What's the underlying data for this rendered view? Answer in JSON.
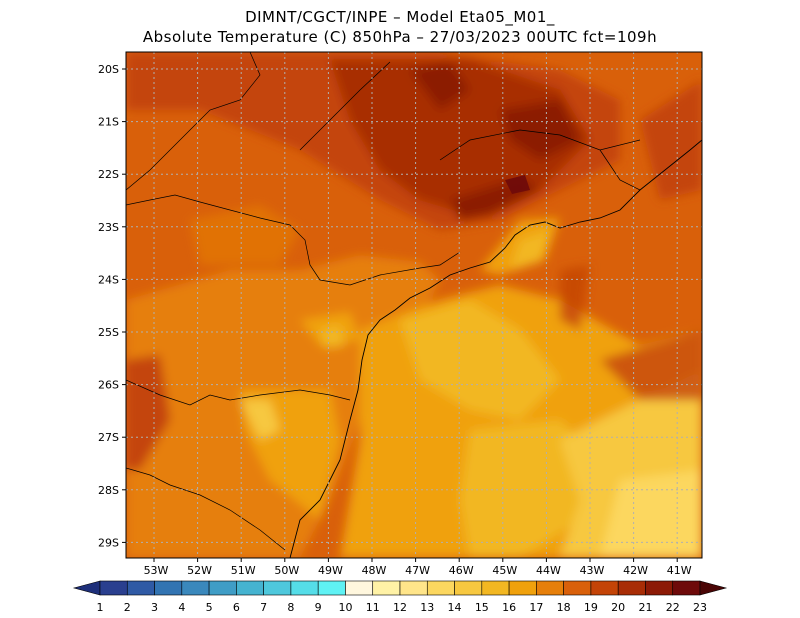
{
  "title_line1": "DIMNT/CGCT/INPE –  Model Eta05_M01_",
  "title_line2": "Absolute Temperature (C) 850hPa –  27/03/2023 00UTC fct=109h",
  "map": {
    "lat_labels": [
      "20S",
      "21S",
      "22S",
      "23S",
      "24S",
      "25S",
      "26S",
      "27S",
      "28S",
      "29S"
    ],
    "lon_labels": [
      "53W",
      "52W",
      "51W",
      "50W",
      "49W",
      "48W",
      "47W",
      "46W",
      "45W",
      "44W",
      "43W",
      "42W",
      "41W"
    ],
    "gridlines": "dotted"
  },
  "colorbar": {
    "labels": [
      "1",
      "2",
      "3",
      "4",
      "5",
      "6",
      "7",
      "8",
      "9",
      "10",
      "11",
      "12",
      "13",
      "14",
      "15",
      "16",
      "17",
      "18",
      "19",
      "20",
      "21",
      "22",
      "23"
    ],
    "colors": [
      "#2a3f8f",
      "#2f5aa5",
      "#3274b2",
      "#3a88bc",
      "#3f9dc6",
      "#45b3d0",
      "#4ec8dc",
      "#55dde8",
      "#5ff2f4",
      "#fff7de",
      "#fff2a6",
      "#ffe58a",
      "#fcd75f",
      "#f7c840",
      "#f2b722",
      "#f0a10c",
      "#e67f0a",
      "#d9600a",
      "#c44407",
      "#a82d06",
      "#8c1a06",
      "#6e0a0a"
    ],
    "low_color": "#1e2f7a",
    "high_color": "#4a0505"
  }
}
